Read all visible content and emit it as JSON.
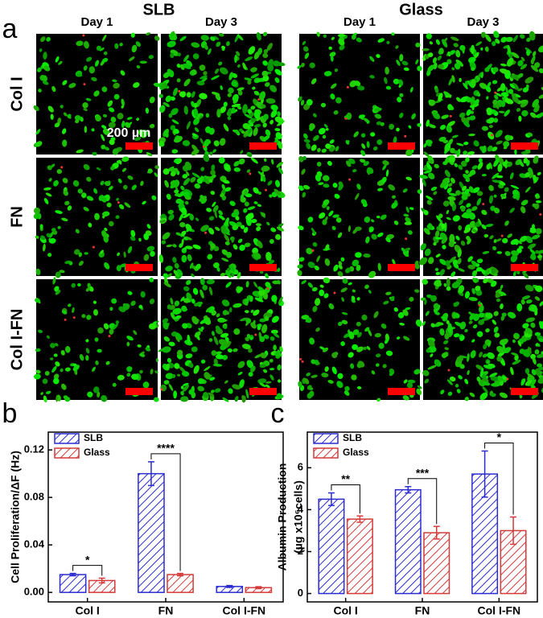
{
  "panel_a": {
    "label": "a",
    "groups": [
      {
        "title": "SLB",
        "days": [
          "Day 1",
          "Day 3"
        ]
      },
      {
        "title": "Glass",
        "days": [
          "Day 1",
          "Day 3"
        ]
      }
    ],
    "rows": [
      "Col I",
      "FN",
      "Col I-FN"
    ],
    "scale_bar": "200 µm"
  },
  "chart_data": [
    {
      "type": "bar",
      "panel_label": "b",
      "ylabel": [
        "Cell Proliferation/ΔF (Hz)"
      ],
      "categories": [
        "Col I",
        "FN",
        "Col I-FN"
      ],
      "series": [
        {
          "name": "SLB",
          "color": "#2b2bd1",
          "values": [
            0.015,
            0.1,
            0.005
          ],
          "errors": [
            0.001,
            0.01,
            0.0008
          ]
        },
        {
          "name": "Glass",
          "color": "#d43a3a",
          "values": [
            0.01,
            0.015,
            0.004
          ],
          "errors": [
            0.002,
            0.001,
            0.0008
          ]
        }
      ],
      "significance": [
        "*",
        "****",
        null
      ],
      "ylim": [
        -0.008,
        0.135
      ],
      "yticks": [
        {
          "value": 0,
          "label": "0.00"
        },
        0.04,
        0.08,
        0.12
      ],
      "legend": "upper-left"
    },
    {
      "type": "bar",
      "panel_label": "c",
      "ylabel": [
        "Albumin Production",
        "(µg x10⁶cells)"
      ],
      "categories": [
        "Col I",
        "FN",
        "Col I-FN"
      ],
      "series": [
        {
          "name": "SLB",
          "color": "#2b2bd1",
          "values": [
            4.5,
            4.95,
            5.7
          ],
          "errors": [
            0.3,
            0.15,
            1.1
          ]
        },
        {
          "name": "Glass",
          "color": "#d43a3a",
          "values": [
            3.55,
            2.9,
            3.0
          ],
          "errors": [
            0.15,
            0.3,
            0.65
          ]
        }
      ],
      "significance": [
        "**",
        "***",
        "*"
      ],
      "ylim": [
        -0.4,
        7.7
      ],
      "yticks": [
        0,
        2,
        4,
        6
      ],
      "legend": "upper-left"
    }
  ]
}
